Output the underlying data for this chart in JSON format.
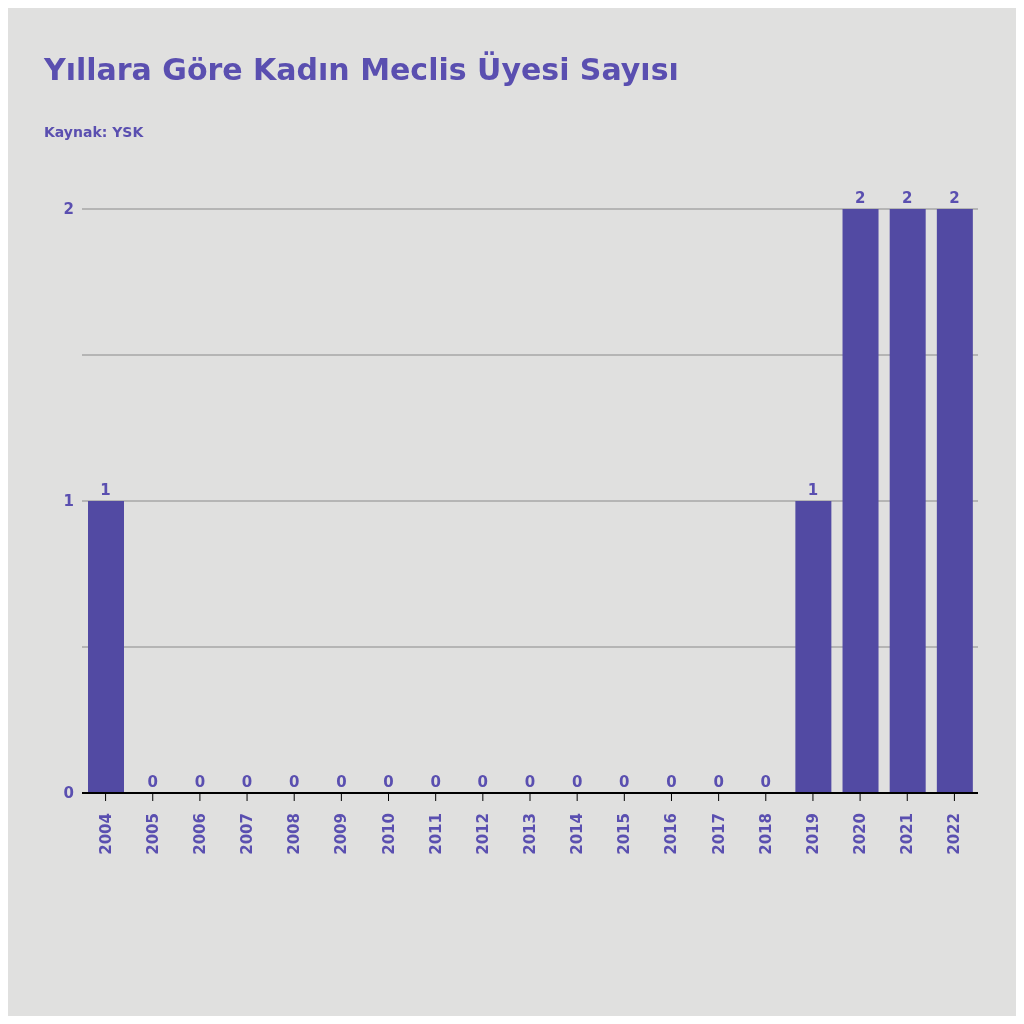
{
  "chart_data": {
    "type": "bar",
    "title": "Yıllara Göre Kadın Meclis Üyesi Sayısı",
    "subtitle": "Kaynak: YSK",
    "categories": [
      "2004",
      "2005",
      "2006",
      "2007",
      "2008",
      "2009",
      "2010",
      "2011",
      "2012",
      "2013",
      "2014",
      "2015",
      "2016",
      "2017",
      "2018",
      "2019",
      "2020",
      "2021",
      "2022"
    ],
    "values": [
      1,
      0,
      0,
      0,
      0,
      0,
      0,
      0,
      0,
      0,
      0,
      0,
      0,
      0,
      0,
      1,
      2,
      2,
      2
    ],
    "color": "#524aa3",
    "ylim": [
      0,
      2
    ],
    "yticks": [
      0,
      {
        "value": 0.5,
        "label": null
      },
      1,
      {
        "value": 1.5,
        "label": null
      },
      2
    ],
    "grid": "y",
    "data_labels": true
  }
}
